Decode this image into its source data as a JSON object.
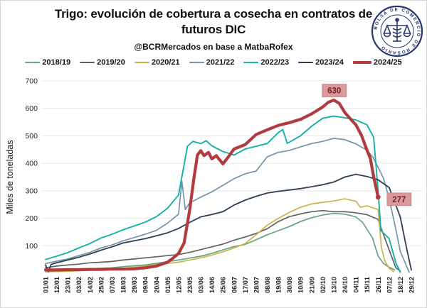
{
  "header": {
    "title": "Trigo: evolución de cobertura a cosecha en contratos de futuros DIC",
    "subtitle": "@BCRMercados en base a MatbaRofex"
  },
  "logo": {
    "ring_text": "BOLSA DE COMERCIO DE ROSARIO",
    "color": "#26386b"
  },
  "chart_data": {
    "type": "line",
    "title": "Trigo: evolución de cobertura a cosecha en contratos de futuros DIC",
    "subtitle": "@BCRMercados en base a MatbaRofex",
    "xlabel": "",
    "ylabel": "Miles de toneladas",
    "ylim": [
      0,
      700
    ],
    "yticks": [
      100,
      200,
      300,
      400,
      500,
      600,
      700
    ],
    "grid": "horizontal",
    "legend_position": "top",
    "grid_color": "#e8e8e8",
    "axis_text_color": "#222222",
    "annotation_bg": "#d89a9a",
    "annotation_border": "#c48484",
    "annotation_fg": "#7c2326",
    "x_ticklabels": [
      "01/01",
      "12/01",
      "23/01",
      "03/02",
      "14/02",
      "25/02",
      "07/03",
      "18/03",
      "29/03",
      "09/04",
      "20/04",
      "01/05",
      "12/05",
      "23/05",
      "03/06",
      "14/06",
      "25/06",
      "06/07",
      "17/07",
      "28/07",
      "08/08",
      "19/08",
      "30/08",
      "10/09",
      "21/09",
      "02/10",
      "13/10",
      "24/10",
      "04/11",
      "15/11",
      "26/11",
      "07/12",
      "18/12",
      "29/12"
    ],
    "series": [
      {
        "name": "2018/19",
        "color": "#63a484",
        "width": 1.7,
        "points": [
          [
            0,
            8
          ],
          [
            1,
            10
          ],
          [
            2,
            12
          ],
          [
            3,
            14
          ],
          [
            4,
            16
          ],
          [
            5,
            18
          ],
          [
            6,
            20
          ],
          [
            7,
            24
          ],
          [
            8,
            27
          ],
          [
            9,
            30
          ],
          [
            10,
            36
          ],
          [
            11,
            42
          ],
          [
            12,
            48
          ],
          [
            13,
            55
          ],
          [
            14,
            62
          ],
          [
            15,
            72
          ],
          [
            16,
            85
          ],
          [
            17,
            97
          ],
          [
            18,
            105
          ],
          [
            19,
            122
          ],
          [
            20,
            140
          ],
          [
            21,
            155
          ],
          [
            22,
            170
          ],
          [
            23,
            188
          ],
          [
            24,
            202
          ],
          [
            25,
            212
          ],
          [
            26,
            218
          ],
          [
            27,
            215
          ],
          [
            28,
            205
          ],
          [
            28.6,
            185
          ],
          [
            29,
            160
          ],
          [
            29.5,
            128
          ],
          [
            30,
            62
          ],
          [
            30.5,
            35
          ],
          [
            31,
            22
          ],
          [
            31.5,
            12
          ]
        ]
      },
      {
        "name": "2019/20",
        "color": "#5f6164",
        "width": 1.7,
        "points": [
          [
            0,
            20
          ],
          [
            1,
            26
          ],
          [
            2,
            30
          ],
          [
            3,
            33
          ],
          [
            4,
            38
          ],
          [
            5,
            40
          ],
          [
            6,
            43
          ],
          [
            7,
            48
          ],
          [
            8,
            52
          ],
          [
            9,
            56
          ],
          [
            10,
            60
          ],
          [
            11,
            64
          ],
          [
            12,
            68
          ],
          [
            13,
            76
          ],
          [
            14,
            86
          ],
          [
            15,
            96
          ],
          [
            16,
            106
          ],
          [
            17,
            120
          ],
          [
            18,
            132
          ],
          [
            19,
            145
          ],
          [
            20,
            162
          ],
          [
            21,
            188
          ],
          [
            22,
            206
          ],
          [
            23,
            216
          ],
          [
            24,
            224
          ],
          [
            25,
            228
          ],
          [
            26,
            224
          ],
          [
            27,
            224
          ],
          [
            28,
            220
          ],
          [
            29,
            213
          ],
          [
            30,
            196
          ],
          [
            30.4,
            150
          ],
          [
            31,
            85
          ],
          [
            31.6,
            20
          ],
          [
            32,
            8
          ]
        ]
      },
      {
        "name": "2020/21",
        "color": "#ccb24a",
        "width": 1.7,
        "points": [
          [
            0,
            5
          ],
          [
            1,
            6
          ],
          [
            2,
            7
          ],
          [
            3,
            9
          ],
          [
            4,
            11
          ],
          [
            5,
            13
          ],
          [
            6,
            15
          ],
          [
            7,
            18
          ],
          [
            8,
            22
          ],
          [
            9,
            26
          ],
          [
            10,
            32
          ],
          [
            11,
            36
          ],
          [
            12,
            40
          ],
          [
            13,
            48
          ],
          [
            14,
            56
          ],
          [
            15,
            66
          ],
          [
            16,
            78
          ],
          [
            17,
            92
          ],
          [
            18,
            108
          ],
          [
            19,
            140
          ],
          [
            20,
            175
          ],
          [
            21,
            200
          ],
          [
            22,
            222
          ],
          [
            23,
            240
          ],
          [
            24,
            252
          ],
          [
            25,
            258
          ],
          [
            26,
            263
          ],
          [
            27,
            271
          ],
          [
            28,
            262
          ],
          [
            28.4,
            240
          ],
          [
            29,
            245
          ],
          [
            30,
            232
          ],
          [
            30.3,
            95
          ],
          [
            30.6,
            45
          ],
          [
            31,
            18
          ],
          [
            31.4,
            6
          ]
        ]
      },
      {
        "name": "2021/22",
        "color": "#7295ab",
        "width": 1.7,
        "points": [
          [
            0,
            35
          ],
          [
            1,
            44
          ],
          [
            2,
            52
          ],
          [
            3,
            64
          ],
          [
            4,
            76
          ],
          [
            5,
            92
          ],
          [
            6,
            103
          ],
          [
            7,
            118
          ],
          [
            8,
            130
          ],
          [
            9,
            142
          ],
          [
            10,
            156
          ],
          [
            11,
            182
          ],
          [
            12,
            215
          ],
          [
            12.3,
            335
          ],
          [
            12.6,
            232
          ],
          [
            13,
            256
          ],
          [
            14,
            277
          ],
          [
            15,
            296
          ],
          [
            16,
            320
          ],
          [
            17,
            344
          ],
          [
            18,
            362
          ],
          [
            19,
            372
          ],
          [
            20,
            424
          ],
          [
            21,
            440
          ],
          [
            22,
            447
          ],
          [
            23,
            460
          ],
          [
            24,
            472
          ],
          [
            25,
            480
          ],
          [
            26,
            491
          ],
          [
            27,
            486
          ],
          [
            28,
            471
          ],
          [
            29,
            448
          ],
          [
            29.5,
            424
          ],
          [
            30,
            386
          ],
          [
            30.5,
            344
          ],
          [
            31,
            272
          ],
          [
            31.6,
            160
          ],
          [
            32,
            80
          ],
          [
            32.8,
            4
          ]
        ]
      },
      {
        "name": "2022/23",
        "color": "#14b1a6",
        "width": 1.9,
        "points": [
          [
            0,
            50
          ],
          [
            1,
            62
          ],
          [
            2,
            75
          ],
          [
            3,
            92
          ],
          [
            4,
            108
          ],
          [
            5,
            128
          ],
          [
            6,
            142
          ],
          [
            7,
            158
          ],
          [
            8,
            172
          ],
          [
            9,
            186
          ],
          [
            10,
            206
          ],
          [
            11,
            236
          ],
          [
            12,
            285
          ],
          [
            12.8,
            462
          ],
          [
            13.3,
            480
          ],
          [
            14,
            472
          ],
          [
            14.5,
            482
          ],
          [
            15,
            464
          ],
          [
            16,
            443
          ],
          [
            17,
            430
          ],
          [
            18,
            452
          ],
          [
            19,
            462
          ],
          [
            20,
            472
          ],
          [
            21,
            512
          ],
          [
            21.4,
            523
          ],
          [
            21.8,
            473
          ],
          [
            22,
            477
          ],
          [
            23,
            500
          ],
          [
            24,
            535
          ],
          [
            25,
            564
          ],
          [
            26,
            572
          ],
          [
            27,
            566
          ],
          [
            28,
            558
          ],
          [
            29,
            540
          ],
          [
            29.6,
            495
          ],
          [
            30,
            300
          ],
          [
            30.25,
            155
          ],
          [
            31,
            126
          ],
          [
            31.6,
            38
          ],
          [
            32,
            4
          ]
        ]
      },
      {
        "name": "2023/24",
        "color": "#2d3e52",
        "width": 1.8,
        "points": [
          [
            0,
            30
          ],
          [
            0.25,
            6
          ],
          [
            0.5,
            32
          ],
          [
            1,
            38
          ],
          [
            2,
            48
          ],
          [
            3,
            58
          ],
          [
            4,
            70
          ],
          [
            5,
            84
          ],
          [
            6,
            96
          ],
          [
            7,
            110
          ],
          [
            8,
            118
          ],
          [
            9,
            126
          ],
          [
            10,
            136
          ],
          [
            11,
            147
          ],
          [
            12,
            163
          ],
          [
            13,
            185
          ],
          [
            14,
            205
          ],
          [
            15,
            214
          ],
          [
            16,
            224
          ],
          [
            17,
            248
          ],
          [
            18,
            266
          ],
          [
            19,
            280
          ],
          [
            20,
            292
          ],
          [
            21,
            298
          ],
          [
            22,
            303
          ],
          [
            23,
            308
          ],
          [
            24,
            315
          ],
          [
            25,
            322
          ],
          [
            26,
            332
          ],
          [
            27,
            350
          ],
          [
            28,
            360
          ],
          [
            29,
            352
          ],
          [
            30,
            340
          ],
          [
            31,
            312
          ],
          [
            32,
            205
          ],
          [
            32.6,
            85
          ],
          [
            33,
            12
          ]
        ]
      },
      {
        "name": "2024/25",
        "color": "#b23b40",
        "width": 4.2,
        "end_dot": true,
        "points": [
          [
            0,
            12
          ],
          [
            1,
            12
          ],
          [
            2,
            13
          ],
          [
            3,
            13
          ],
          [
            4,
            14
          ],
          [
            5,
            14
          ],
          [
            6,
            15
          ],
          [
            7,
            15
          ],
          [
            8,
            16
          ],
          [
            9,
            20
          ],
          [
            10,
            26
          ],
          [
            11,
            40
          ],
          [
            11.5,
            55
          ],
          [
            12,
            72
          ],
          [
            12.5,
            110
          ],
          [
            13,
            230
          ],
          [
            13.4,
            350
          ],
          [
            13.7,
            430
          ],
          [
            14,
            446
          ],
          [
            14.3,
            428
          ],
          [
            14.7,
            440
          ],
          [
            15,
            416
          ],
          [
            15.4,
            428
          ],
          [
            16,
            398
          ],
          [
            16.5,
            424
          ],
          [
            17,
            452
          ],
          [
            18,
            468
          ],
          [
            19,
            505
          ],
          [
            20,
            522
          ],
          [
            21,
            538
          ],
          [
            22,
            548
          ],
          [
            23,
            560
          ],
          [
            24,
            580
          ],
          [
            25,
            605
          ],
          [
            25.5,
            622
          ],
          [
            26,
            630
          ],
          [
            26.5,
            618
          ],
          [
            27,
            585
          ],
          [
            27.5,
            562
          ],
          [
            28,
            540
          ],
          [
            28.5,
            502
          ],
          [
            29,
            448
          ],
          [
            29.3,
            418
          ],
          [
            29.6,
            352
          ],
          [
            30,
            277
          ]
        ]
      }
    ],
    "annotations": [
      {
        "text": "630",
        "x": 26.05,
        "y": 665
      },
      {
        "text": "277",
        "x": 31.9,
        "y": 269
      }
    ]
  }
}
